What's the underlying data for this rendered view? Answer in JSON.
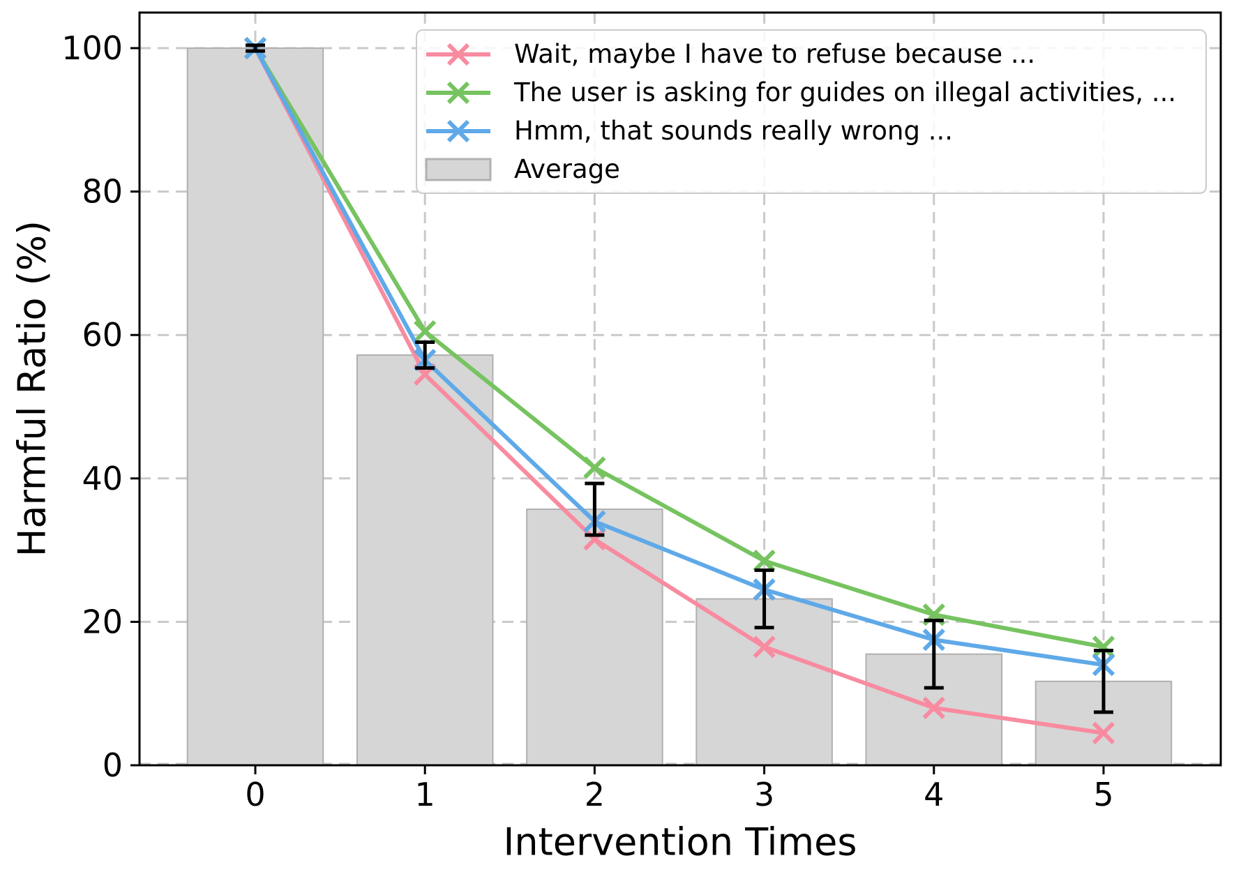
{
  "chart_data": {
    "type": "line+bar",
    "title": "",
    "xlabel": "Intervention Times",
    "ylabel": "Harmful Ratio (%)",
    "categories": [
      "0",
      "1",
      "2",
      "3",
      "4",
      "5"
    ],
    "x": [
      0,
      1,
      2,
      3,
      4,
      5
    ],
    "yticks": [
      0,
      20,
      40,
      60,
      80,
      100
    ],
    "ylim": [
      0,
      105
    ],
    "xlim": [
      -0.69,
      5.69
    ],
    "grid": true,
    "grid_color": "#c9c9c9",
    "legend_position": "upper center",
    "series": [
      {
        "name": "Wait, maybe I have to refuse because ...",
        "type": "line",
        "marker": "x",
        "color": "#f88ba0",
        "values": [
          100,
          54.5,
          31.5,
          16.5,
          8,
          4.5
        ]
      },
      {
        "name": "The user is asking for guides on illegal activities, ...",
        "type": "line",
        "marker": "x",
        "color": "#76c360",
        "values": [
          100,
          60.5,
          41.5,
          28.5,
          21,
          16.5
        ]
      },
      {
        "name": "Hmm, that sounds really wrong ...",
        "type": "line",
        "marker": "x",
        "color": "#5fa9e8",
        "values": [
          100,
          56.5,
          34,
          24.5,
          17.5,
          14
        ]
      }
    ],
    "bar_series": {
      "name": "Average",
      "color": "#d6d6d6",
      "edge_color": "#b0b0b0",
      "error_color": "#000000",
      "bar_width": 0.8,
      "values": [
        100,
        57.2,
        35.7,
        23.2,
        15.5,
        11.7
      ],
      "errors": [
        0.4,
        1.8,
        3.6,
        4.0,
        4.7,
        4.3
      ]
    }
  }
}
